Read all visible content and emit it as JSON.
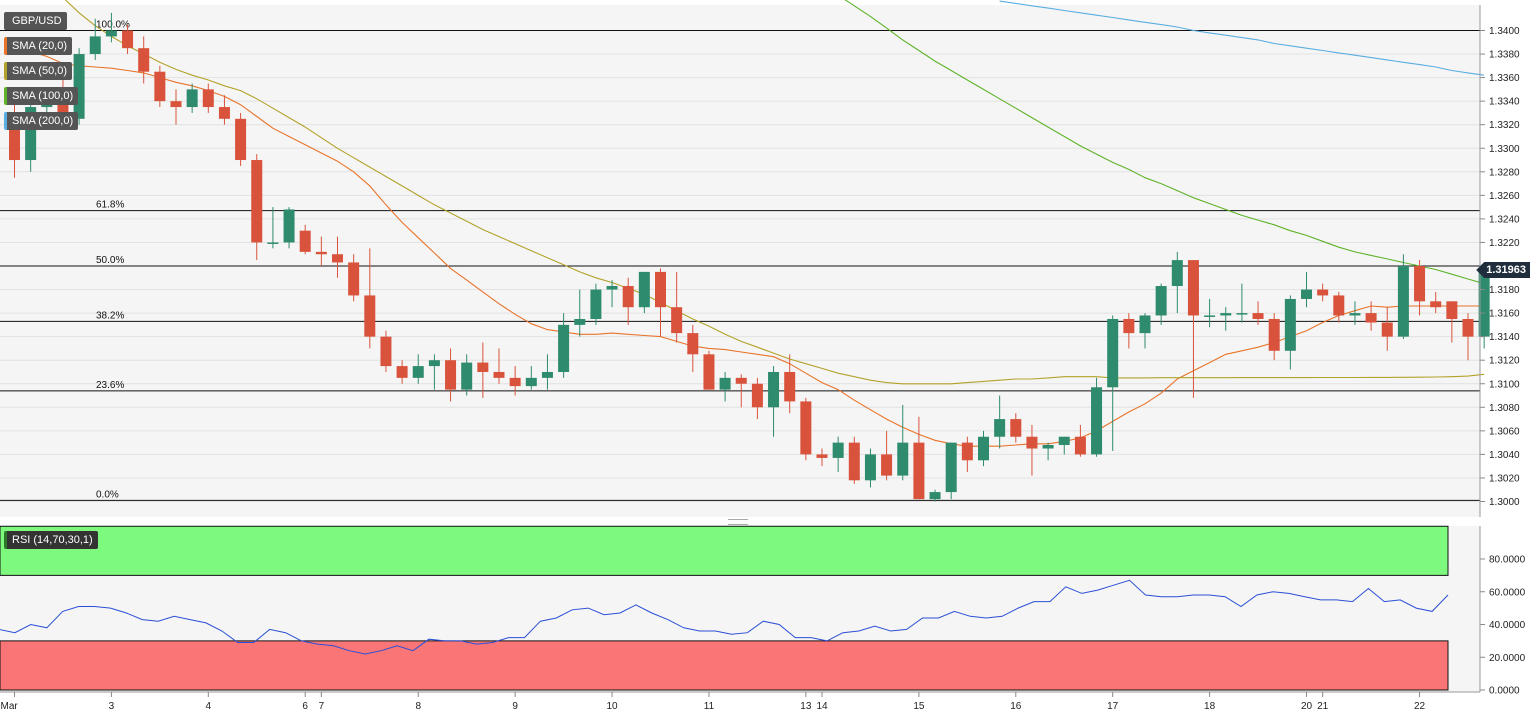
{
  "instrument": "GBP/USD",
  "last_price_label": "1.31963",
  "legend": [
    {
      "label": "GBP/USD",
      "color": "#666666"
    },
    {
      "label": "SMA (20,0)",
      "color": "#e8742a"
    },
    {
      "label": "SMA (50,0)",
      "color": "#b3a22a"
    },
    {
      "label": "SMA (100,0)",
      "color": "#5fb32a"
    },
    {
      "label": "SMA (200,0)",
      "color": "#5aaee0"
    }
  ],
  "rsi_label": "RSI (14,70,30,1)",
  "colors": {
    "up": "#2e8b6e",
    "down": "#d9533c",
    "sma20": "#e8742a",
    "sma50": "#b3a22a",
    "sma100": "#5fb32a",
    "sma200": "#5aaee0",
    "rsi_line": "#2a4fd6",
    "overbought": "#7dfa7d",
    "oversold": "#fa7575"
  },
  "chart_data": [
    {
      "type": "candlestick",
      "title": "GBP/USD",
      "ylim": [
        1.299,
        1.342
      ],
      "y_ticks": [
        "1.3000",
        "1.3020",
        "1.3040",
        "1.3060",
        "1.3080",
        "1.3100",
        "1.3120",
        "1.3140",
        "1.3160",
        "1.3180",
        "1.3200",
        "1.3220",
        "1.3240",
        "1.3260",
        "1.3280",
        "1.3300",
        "1.3320",
        "1.3340",
        "1.3360",
        "1.3380",
        "1.3400"
      ],
      "x_labels": [
        {
          "i": 0,
          "label": "Mar"
        },
        {
          "i": 6,
          "label": "3"
        },
        {
          "i": 12,
          "label": "4"
        },
        {
          "i": 18,
          "label": "6"
        },
        {
          "i": 19,
          "label": "7"
        },
        {
          "i": 25,
          "label": "8"
        },
        {
          "i": 31,
          "label": "9"
        },
        {
          "i": 37,
          "label": "10"
        },
        {
          "i": 43,
          "label": "11"
        },
        {
          "i": 49,
          "label": "13"
        },
        {
          "i": 50,
          "label": "14"
        },
        {
          "i": 56,
          "label": "15"
        },
        {
          "i": 62,
          "label": "16"
        },
        {
          "i": 68,
          "label": "17"
        },
        {
          "i": 74,
          "label": "18"
        },
        {
          "i": 80,
          "label": "20"
        },
        {
          "i": 81,
          "label": "21"
        },
        {
          "i": 87,
          "label": "22"
        }
      ],
      "fib_levels": [
        {
          "label": "100.0%",
          "value": 1.34
        },
        {
          "label": "61.8%",
          "value": 1.3247
        },
        {
          "label": "50.0%",
          "value": 1.32
        },
        {
          "label": "38.2%",
          "value": 1.3153
        },
        {
          "label": "23.6%",
          "value": 1.3094
        },
        {
          "label": "0.0%",
          "value": 1.3001
        }
      ],
      "candles": [
        [
          1.333,
          1.335,
          1.3275,
          1.329
        ],
        [
          1.329,
          1.334,
          1.328,
          1.3335
        ],
        [
          1.3335,
          1.3345,
          1.332,
          1.334
        ],
        [
          1.334,
          1.336,
          1.332,
          1.3325
        ],
        [
          1.3325,
          1.3385,
          1.332,
          1.338
        ],
        [
          1.338,
          1.341,
          1.3375,
          1.3395
        ],
        [
          1.3395,
          1.3415,
          1.339,
          1.34
        ],
        [
          1.34,
          1.3405,
          1.338,
          1.3385
        ],
        [
          1.3385,
          1.3395,
          1.3355,
          1.3365
        ],
        [
          1.3365,
          1.337,
          1.3335,
          1.334
        ],
        [
          1.334,
          1.335,
          1.332,
          1.3335
        ],
        [
          1.3335,
          1.3355,
          1.333,
          1.335
        ],
        [
          1.335,
          1.3355,
          1.333,
          1.3335
        ],
        [
          1.3335,
          1.3345,
          1.332,
          1.3325
        ],
        [
          1.3325,
          1.333,
          1.3285,
          1.329
        ],
        [
          1.329,
          1.3295,
          1.3205,
          1.322
        ],
        [
          1.322,
          1.325,
          1.3215,
          1.322
        ],
        [
          1.322,
          1.325,
          1.3215,
          1.3248
        ],
        [
          1.323,
          1.3235,
          1.321,
          1.3212
        ],
        [
          1.3212,
          1.3225,
          1.32,
          1.321
        ],
        [
          1.321,
          1.3225,
          1.319,
          1.3203
        ],
        [
          1.3203,
          1.321,
          1.317,
          1.3175
        ],
        [
          1.3175,
          1.3215,
          1.313,
          1.314
        ],
        [
          1.314,
          1.3145,
          1.311,
          1.3115
        ],
        [
          1.3115,
          1.312,
          1.31,
          1.3105
        ],
        [
          1.3105,
          1.3125,
          1.31,
          1.3115
        ],
        [
          1.3115,
          1.3125,
          1.3095,
          1.312
        ],
        [
          1.312,
          1.313,
          1.3085,
          1.3095
        ],
        [
          1.3095,
          1.3125,
          1.309,
          1.3118
        ],
        [
          1.3118,
          1.3135,
          1.3088,
          1.311
        ],
        [
          1.311,
          1.313,
          1.31,
          1.3105
        ],
        [
          1.3105,
          1.3115,
          1.309,
          1.3098
        ],
        [
          1.3098,
          1.3115,
          1.3095,
          1.3105
        ],
        [
          1.3105,
          1.3125,
          1.3095,
          1.311
        ],
        [
          1.311,
          1.316,
          1.3105,
          1.315
        ],
        [
          1.315,
          1.318,
          1.314,
          1.3155
        ],
        [
          1.3155,
          1.3185,
          1.315,
          1.318
        ],
        [
          1.318,
          1.3188,
          1.3165,
          1.3183
        ],
        [
          1.3183,
          1.319,
          1.315,
          1.3165
        ],
        [
          1.3165,
          1.3195,
          1.316,
          1.3195
        ],
        [
          1.3195,
          1.3198,
          1.314,
          1.3165
        ],
        [
          1.3165,
          1.3195,
          1.3135,
          1.3143
        ],
        [
          1.3143,
          1.315,
          1.311,
          1.3125
        ],
        [
          1.3125,
          1.3128,
          1.3095,
          1.3095
        ],
        [
          1.3095,
          1.311,
          1.3085,
          1.3105
        ],
        [
          1.3105,
          1.3108,
          1.308,
          1.31
        ],
        [
          1.31,
          1.3105,
          1.307,
          1.308
        ],
        [
          1.308,
          1.3115,
          1.3055,
          1.311
        ],
        [
          1.311,
          1.3125,
          1.3075,
          1.3085
        ],
        [
          1.3085,
          1.3088,
          1.3035,
          1.304
        ],
        [
          1.304,
          1.3045,
          1.303,
          1.3037
        ],
        [
          1.3037,
          1.3055,
          1.3025,
          1.305
        ],
        [
          1.305,
          1.3055,
          1.3015,
          1.3018
        ],
        [
          1.3018,
          1.3045,
          1.3012,
          1.304
        ],
        [
          1.304,
          1.306,
          1.3018,
          1.3022
        ],
        [
          1.3022,
          1.3082,
          1.3018,
          1.305
        ],
        [
          1.305,
          1.3072,
          1.3002,
          1.3002
        ],
        [
          1.3002,
          1.301,
          1.3,
          1.3008
        ],
        [
          1.3008,
          1.305,
          1.3002,
          1.305
        ],
        [
          1.305,
          1.3055,
          1.3025,
          1.3035
        ],
        [
          1.3035,
          1.306,
          1.303,
          1.3055
        ],
        [
          1.3055,
          1.309,
          1.3045,
          1.307
        ],
        [
          1.307,
          1.3075,
          1.305,
          1.3055
        ],
        [
          1.3055,
          1.3065,
          1.3022,
          1.3045
        ],
        [
          1.3045,
          1.305,
          1.3035,
          1.3048
        ],
        [
          1.3048,
          1.3055,
          1.304,
          1.3055
        ],
        [
          1.3055,
          1.3065,
          1.3038,
          1.304
        ],
        [
          1.304,
          1.3105,
          1.3038,
          1.3097
        ],
        [
          1.3097,
          1.3158,
          1.3043,
          1.3155
        ],
        [
          1.3155,
          1.316,
          1.313,
          1.3143
        ],
        [
          1.3143,
          1.316,
          1.313,
          1.3158
        ],
        [
          1.3158,
          1.3185,
          1.315,
          1.3183
        ],
        [
          1.3183,
          1.3212,
          1.316,
          1.3205
        ],
        [
          1.3205,
          1.3205,
          1.3088,
          1.3158
        ],
        [
          1.3158,
          1.3172,
          1.3148,
          1.3158
        ],
        [
          1.3158,
          1.3165,
          1.3145,
          1.316
        ],
        [
          1.316,
          1.3185,
          1.3152,
          1.316
        ],
        [
          1.316,
          1.317,
          1.315,
          1.3155
        ],
        [
          1.3155,
          1.316,
          1.312,
          1.3128
        ],
        [
          1.3128,
          1.3175,
          1.3112,
          1.3172
        ],
        [
          1.3172,
          1.3195,
          1.3165,
          1.318
        ],
        [
          1.318,
          1.3185,
          1.317,
          1.3175
        ],
        [
          1.3175,
          1.3178,
          1.3152,
          1.3158
        ],
        [
          1.3158,
          1.317,
          1.315,
          1.316
        ],
        [
          1.316,
          1.317,
          1.3145,
          1.3152
        ],
        [
          1.3152,
          1.3165,
          1.3128,
          1.314
        ],
        [
          1.314,
          1.321,
          1.3138,
          1.32
        ],
        [
          1.32,
          1.3205,
          1.3158,
          1.317
        ],
        [
          1.317,
          1.3178,
          1.316,
          1.3165
        ],
        [
          1.317,
          1.317,
          1.3135,
          1.3155
        ],
        [
          1.3155,
          1.316,
          1.312,
          1.314
        ],
        [
          1.314,
          1.32,
          1.313,
          1.3196
        ]
      ],
      "sma20": [
        1.3385,
        1.3382,
        1.3378,
        1.3372,
        1.337,
        1.3369,
        1.3368,
        1.3366,
        1.3364,
        1.336,
        1.3356,
        1.3353,
        1.3349,
        1.3344,
        1.3337,
        1.3327,
        1.3317,
        1.331,
        1.3303,
        1.3296,
        1.3289,
        1.328,
        1.3268,
        1.3252,
        1.3237,
        1.3224,
        1.3211,
        1.3198,
        1.3188,
        1.3178,
        1.3168,
        1.3159,
        1.3151,
        1.3146,
        1.3144,
        1.3142,
        1.3142,
        1.3143,
        1.3142,
        1.3141,
        1.314,
        1.3136,
        1.3132,
        1.313,
        1.3129,
        1.3127,
        1.3125,
        1.3123,
        1.3117,
        1.3109,
        1.3101,
        1.3095,
        1.3086,
        1.3078,
        1.307,
        1.3063,
        1.3057,
        1.3052,
        1.3049,
        1.3047,
        1.3047,
        1.3047,
        1.3048,
        1.3049,
        1.3049,
        1.3051,
        1.3054,
        1.306,
        1.3068,
        1.3076,
        1.3083,
        1.3092,
        1.3104,
        1.3111,
        1.3118,
        1.3125,
        1.3128,
        1.3131,
        1.3135,
        1.314,
        1.3145,
        1.3152,
        1.3158,
        1.3162,
        1.3166,
        1.3165,
        1.3166,
        1.3166
      ],
      "sma50": [
        1.346,
        1.345,
        1.344,
        1.3428,
        1.3415,
        1.3404,
        1.3395,
        1.3387,
        1.338,
        1.3373,
        1.3367,
        1.3362,
        1.3358,
        1.3353,
        1.3349,
        1.3342,
        1.3334,
        1.3326,
        1.3318,
        1.3309,
        1.33,
        1.3292,
        1.3284,
        1.3276,
        1.3268,
        1.326,
        1.3252,
        1.3245,
        1.3238,
        1.3231,
        1.3225,
        1.3219,
        1.3213,
        1.3207,
        1.3201,
        1.3195,
        1.319,
        1.3186,
        1.3181,
        1.3176,
        1.3169,
        1.3162,
        1.3155,
        1.3149,
        1.3142,
        1.3136,
        1.3131,
        1.3126,
        1.3121,
        1.3117,
        1.3113,
        1.3109,
        1.3106,
        1.3103,
        1.3101,
        1.31,
        1.31,
        1.31,
        1.31,
        1.3101,
        1.3102,
        1.3103,
        1.3104,
        1.3104,
        1.3105,
        1.3106,
        1.3106,
        1.3106,
        1.3105,
        1.3105,
        1.3105
      ],
      "sma100": [
        1.3625,
        1.3618,
        1.361,
        1.3603,
        1.3595,
        1.3587,
        1.3579,
        1.3572,
        1.3564,
        1.3557,
        1.355,
        1.3542,
        1.3534,
        1.3526,
        1.3518,
        1.3509,
        1.3499,
        1.349,
        1.348,
        1.347,
        1.346,
        1.345,
        1.344,
        1.343,
        1.3421,
        1.3412,
        1.3402,
        1.3392,
        1.3383,
        1.3374,
        1.3366,
        1.3358,
        1.335,
        1.3342,
        1.3334,
        1.3326,
        1.3318,
        1.331,
        1.3302,
        1.3295,
        1.3288,
        1.3282,
        1.3275,
        1.327,
        1.3264,
        1.3258,
        1.3253,
        1.3248,
        1.3243,
        1.3239,
        1.3235,
        1.323,
        1.3226,
        1.3221,
        1.3216,
        1.3212,
        1.3209,
        1.3206,
        1.3203,
        1.32,
        1.3197,
        1.3193,
        1.3189,
        1.3185
      ],
      "sma200": [
        1.3425,
        1.3423,
        1.3421,
        1.3419,
        1.3417,
        1.3415,
        1.3413,
        1.3411,
        1.3409,
        1.3407,
        1.3405,
        1.3403,
        1.34,
        1.3398,
        1.3396,
        1.3394,
        1.3392,
        1.3389,
        1.3387,
        1.3385,
        1.3383,
        1.3381,
        1.3379,
        1.3377,
        1.3375,
        1.3373,
        1.3371,
        1.3369,
        1.3366,
        1.3364,
        1.3362
      ]
    },
    {
      "type": "line",
      "title": "RSI (14,70,30,1)",
      "ylim": [
        0,
        100
      ],
      "y_ticks": [
        "0.0000",
        "20.0000",
        "40.0000",
        "60.0000",
        "80.0000"
      ],
      "overbought": 70,
      "oversold": 30,
      "values": [
        37,
        35,
        40,
        38,
        48,
        51,
        51,
        50,
        47,
        43,
        42,
        45,
        43,
        41,
        36,
        29,
        29,
        37,
        35,
        30,
        28,
        27,
        24,
        22,
        24,
        27,
        24,
        31,
        30,
        30,
        28,
        29,
        32,
        32,
        42,
        44,
        49,
        50,
        46,
        47,
        52,
        47,
        43,
        38,
        36,
        36,
        34,
        35,
        42,
        40,
        32,
        32,
        30,
        35,
        36,
        39,
        36,
        37,
        44,
        44,
        48,
        45,
        44,
        45,
        50,
        54,
        54,
        63,
        59,
        61,
        64,
        67,
        58,
        57,
        57,
        58,
        58,
        57,
        51,
        58,
        60,
        59,
        57,
        55,
        55,
        54,
        62,
        54,
        55,
        50,
        48,
        58
      ]
    }
  ]
}
